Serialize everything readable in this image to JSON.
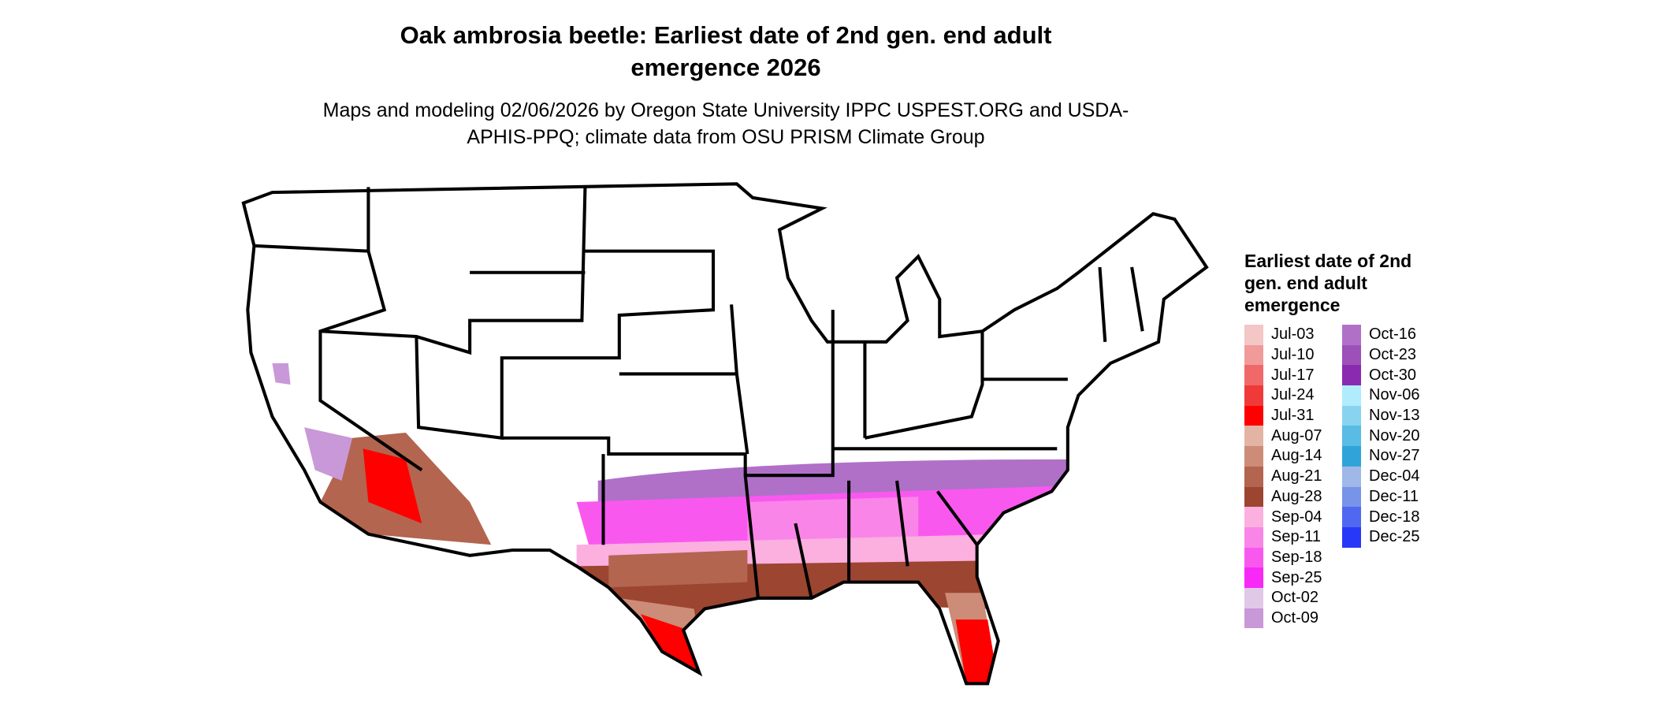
{
  "title": "Oak ambrosia beetle: Earliest date of 2nd gen. end adult emergence 2026",
  "subtitle": "Maps and modeling 02/06/2026 by Oregon State University IPPC USPEST.ORG and USDA-APHIS-PPQ; climate data from OSU PRISM Climate Group",
  "legend": {
    "title": "Earliest date of 2nd gen. end adult emergence",
    "items": [
      {
        "label": "Jul-03",
        "color": "#f4c6c6"
      },
      {
        "label": "Jul-10",
        "color": "#f19a9a"
      },
      {
        "label": "Jul-17",
        "color": "#f06868"
      },
      {
        "label": "Jul-24",
        "color": "#f03a3a"
      },
      {
        "label": "Jul-31",
        "color": "#ff0000"
      },
      {
        "label": "Aug-07",
        "color": "#e3b4a4"
      },
      {
        "label": "Aug-14",
        "color": "#cc8c78"
      },
      {
        "label": "Aug-21",
        "color": "#b3654f"
      },
      {
        "label": "Aug-28",
        "color": "#9c4530"
      },
      {
        "label": "Sep-04",
        "color": "#fbb0e0"
      },
      {
        "label": "Sep-11",
        "color": "#fa85e8"
      },
      {
        "label": "Sep-18",
        "color": "#f958ef"
      },
      {
        "label": "Sep-25",
        "color": "#f828f6"
      },
      {
        "label": "Oct-02",
        "color": "#e0c8e8"
      },
      {
        "label": "Oct-09",
        "color": "#c898d8"
      },
      {
        "label": "Oct-16",
        "color": "#b070c8"
      },
      {
        "label": "Oct-23",
        "color": "#9c50b8"
      },
      {
        "label": "Oct-30",
        "color": "#8a2ab0"
      },
      {
        "label": "Nov-06",
        "color": "#b0ecfc"
      },
      {
        "label": "Nov-13",
        "color": "#88d4f0"
      },
      {
        "label": "Nov-20",
        "color": "#58bce4"
      },
      {
        "label": "Nov-27",
        "color": "#30a4d8"
      },
      {
        "label": "Dec-04",
        "color": "#a0b8e8"
      },
      {
        "label": "Dec-11",
        "color": "#7894e8"
      },
      {
        "label": "Dec-18",
        "color": "#5068f0"
      },
      {
        "label": "Dec-25",
        "color": "#2838f8"
      }
    ]
  }
}
